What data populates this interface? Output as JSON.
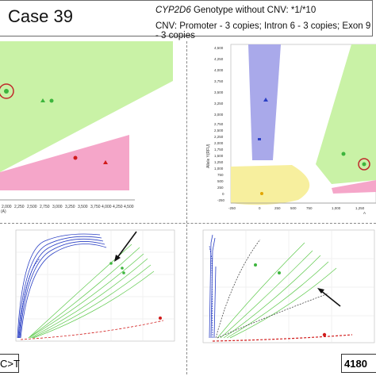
{
  "header": {
    "case_label": "Case 39",
    "genotype_gene": "CYP2D6",
    "genotype_text": " Genotype without CNV: *1/*10",
    "cnv_text": "CNV: Promoter - 3 copies; Intron 6 - 3 copies; Exon 9 - 3 copies"
  },
  "tags": {
    "left": "C>T",
    "right": "4180"
  },
  "top_left_plot": {
    "x_ticks": [
      "2,000",
      "2,250",
      "2,500",
      "2,750",
      "3,000",
      "3,250",
      "3,500",
      "3,750",
      "4,000",
      "4,250",
      "4,500"
    ],
    "x_unit": "(A)"
  },
  "top_right_plot": {
    "y_ticks": [
      "2,750",
      "2,500",
      "2,250",
      "2,000",
      "1,750",
      "1,500",
      "1,250",
      "1,000",
      "750",
      "500",
      "250",
      "0",
      "-250"
    ],
    "y_top_ticks": [
      "4,500",
      "4,250",
      "4,000",
      "3,750",
      "3,500",
      "3,250",
      "3,000"
    ],
    "ylabel": "Allele Y(RFU)",
    "x_ticks": [
      "-250",
      "0",
      "250",
      "500",
      "750",
      "1,000",
      "1,250"
    ],
    "x_unit": "A"
  },
  "colors": {
    "green_zone": "#c9f2a6",
    "pink_zone": "#f5a6c9",
    "blue_zone": "#a9a9ea",
    "yellow_zone": "#f7ef9e",
    "red": "#d11b1b",
    "green_point": "#3db53d",
    "blue_point": "#2a3fc4"
  }
}
